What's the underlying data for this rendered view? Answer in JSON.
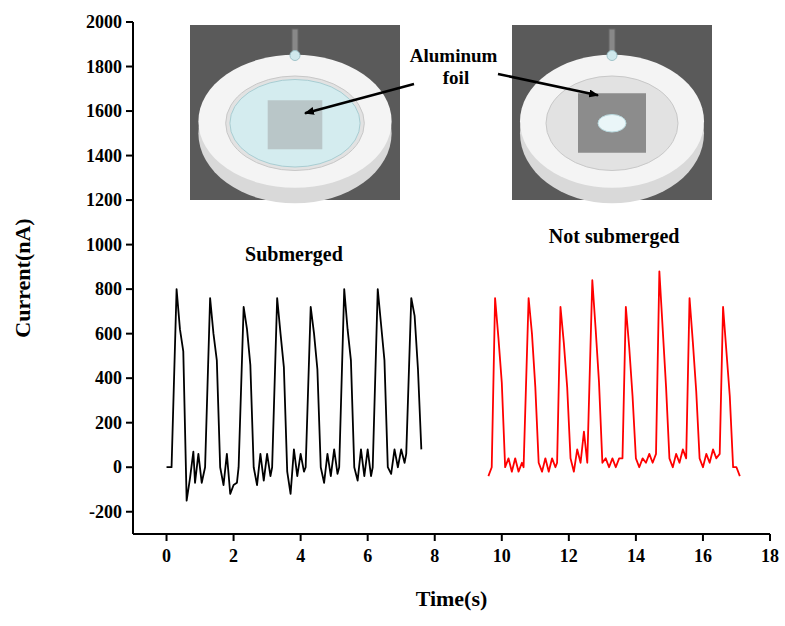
{
  "chart_data": {
    "type": "line",
    "x_label": "Time(s)",
    "y_label": "Current(nA)",
    "xlim": [
      -1,
      18
    ],
    "ylim": [
      -300,
      2000
    ],
    "xticks": [
      0,
      2,
      4,
      6,
      8,
      10,
      12,
      14,
      16,
      18
    ],
    "yticks": [
      -200,
      0,
      200,
      400,
      600,
      800,
      1000,
      1200,
      1400,
      1600,
      1800,
      2000
    ],
    "grid": false,
    "annotations": [
      {
        "text": "Aluminum foil"
      }
    ],
    "series": [
      {
        "name": "Submerged",
        "color": "#000000",
        "line_style": "solid",
        "x": [
          0.0,
          0.15,
          0.3,
          0.4,
          0.5,
          0.6,
          0.7,
          0.8,
          0.85,
          0.95,
          1.05,
          1.15,
          1.3,
          1.4,
          1.5,
          1.6,
          1.7,
          1.8,
          1.9,
          2.0,
          2.1,
          2.15,
          2.3,
          2.4,
          2.5,
          2.6,
          2.7,
          2.8,
          2.9,
          3.0,
          3.1,
          3.15,
          3.3,
          3.4,
          3.5,
          3.6,
          3.7,
          3.8,
          3.9,
          4.0,
          4.1,
          4.15,
          4.3,
          4.4,
          4.5,
          4.6,
          4.7,
          4.8,
          4.9,
          5.0,
          5.1,
          5.15,
          5.3,
          5.4,
          5.5,
          5.6,
          5.7,
          5.8,
          5.9,
          6.0,
          6.1,
          6.15,
          6.3,
          6.4,
          6.5,
          6.6,
          6.7,
          6.8,
          6.9,
          7.0,
          7.1,
          7.15,
          7.3,
          7.4,
          7.5,
          7.6
        ],
        "values": [
          0,
          0,
          800,
          620,
          520,
          -150,
          -50,
          70,
          -70,
          60,
          -70,
          0,
          760,
          600,
          480,
          0,
          -80,
          60,
          -120,
          -80,
          -70,
          0,
          720,
          620,
          460,
          0,
          -80,
          60,
          -60,
          60,
          -40,
          0,
          760,
          600,
          450,
          -20,
          -120,
          80,
          -40,
          60,
          -20,
          0,
          720,
          600,
          440,
          0,
          -70,
          60,
          -40,
          80,
          -30,
          0,
          800,
          620,
          480,
          0,
          -60,
          80,
          -40,
          80,
          -40,
          0,
          800,
          640,
          480,
          0,
          -30,
          80,
          0,
          80,
          20,
          60,
          760,
          680,
          440,
          80
        ]
      },
      {
        "name": "Not submerged",
        "color": "#ff0000",
        "line_style": "solid",
        "x": [
          9.6,
          9.7,
          9.8,
          9.9,
          10.0,
          10.1,
          10.2,
          10.3,
          10.4,
          10.5,
          10.6,
          10.65,
          10.8,
          10.9,
          11.0,
          11.1,
          11.2,
          11.3,
          11.4,
          11.5,
          11.6,
          11.65,
          11.75,
          11.85,
          11.95,
          12.05,
          12.15,
          12.25,
          12.35,
          12.45,
          12.55,
          12.7,
          12.8,
          12.9,
          13.0,
          13.1,
          13.2,
          13.3,
          13.4,
          13.5,
          13.6,
          13.7,
          13.8,
          13.9,
          14.0,
          14.1,
          14.2,
          14.3,
          14.4,
          14.5,
          14.6,
          14.7,
          14.8,
          14.9,
          15.0,
          15.1,
          15.2,
          15.3,
          15.4,
          15.5,
          15.6,
          15.7,
          15.8,
          15.9,
          16.0,
          16.1,
          16.2,
          16.3,
          16.4,
          16.5,
          16.6,
          16.7,
          16.8,
          16.9,
          17.0,
          17.1
        ],
        "values": [
          -40,
          0,
          760,
          580,
          380,
          0,
          40,
          -20,
          40,
          -20,
          20,
          0,
          760,
          600,
          360,
          20,
          -20,
          40,
          -20,
          40,
          0,
          20,
          720,
          560,
          360,
          40,
          -20,
          80,
          20,
          160,
          20,
          840,
          620,
          380,
          20,
          40,
          0,
          40,
          0,
          40,
          40,
          720,
          540,
          320,
          40,
          0,
          40,
          20,
          60,
          20,
          60,
          880,
          620,
          360,
          40,
          0,
          60,
          20,
          80,
          40,
          760,
          560,
          340,
          40,
          0,
          60,
          20,
          80,
          40,
          60,
          720,
          520,
          320,
          0,
          0,
          -40
        ]
      }
    ]
  }
}
